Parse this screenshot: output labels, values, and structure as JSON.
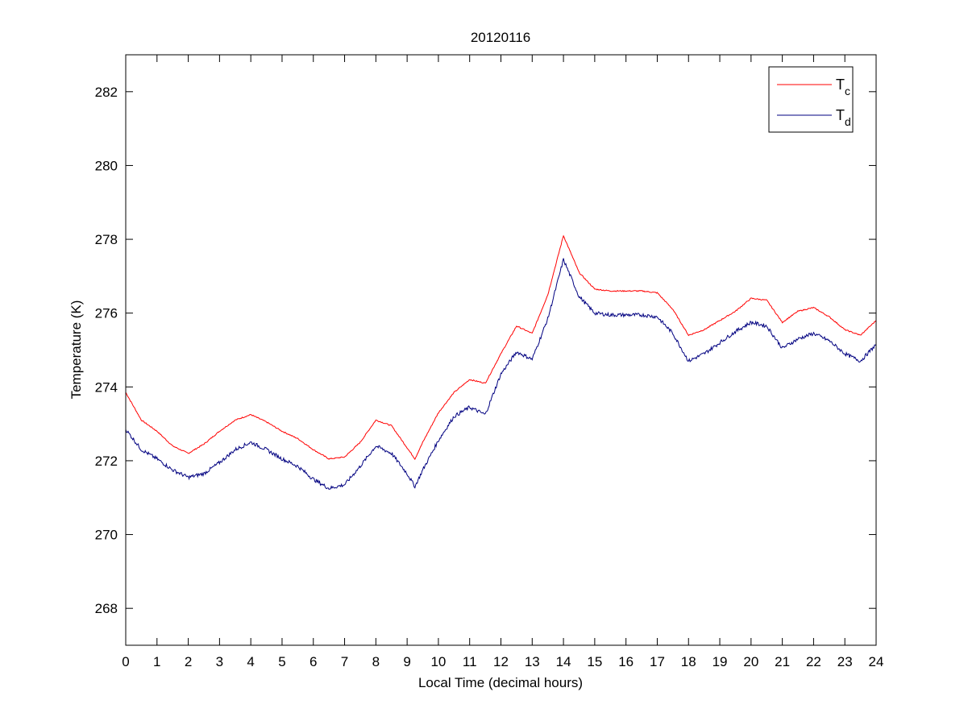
{
  "chart_data": {
    "type": "line",
    "title": "20120116",
    "xlabel": "Local Time (decimal hours)",
    "ylabel": "Temperature (K)",
    "xlim": [
      0,
      24
    ],
    "ylim": [
      267,
      283
    ],
    "xticks": [
      0,
      1,
      2,
      3,
      4,
      5,
      6,
      7,
      8,
      9,
      10,
      11,
      12,
      13,
      14,
      15,
      16,
      17,
      18,
      19,
      20,
      21,
      22,
      23,
      24
    ],
    "yticks": [
      268,
      270,
      272,
      274,
      276,
      278,
      280,
      282
    ],
    "grid": false,
    "legend_position": "top-right",
    "series": [
      {
        "name": "T",
        "subscript": "c",
        "color": "#ff0000",
        "x": [
          0,
          0.5,
          1,
          1.5,
          2,
          2.5,
          3,
          3.5,
          4,
          4.5,
          5,
          5.5,
          6,
          6.5,
          7,
          7.5,
          8,
          8.5,
          9,
          9.25,
          9.5,
          10,
          10.5,
          11,
          11.5,
          12,
          12.5,
          13,
          13.5,
          14,
          14.5,
          15,
          15.5,
          16,
          16.5,
          17,
          17.5,
          18,
          18.5,
          19,
          19.5,
          20,
          20.5,
          21,
          21.5,
          22,
          22.5,
          23,
          23.5,
          24
        ],
        "y": [
          273.85,
          273.1,
          272.8,
          272.4,
          272.2,
          272.45,
          272.8,
          273.1,
          273.25,
          273.05,
          272.8,
          272.6,
          272.3,
          272.05,
          272.1,
          272.5,
          273.1,
          272.95,
          272.35,
          272.05,
          272.5,
          273.3,
          273.85,
          274.2,
          274.1,
          274.9,
          275.65,
          275.45,
          276.5,
          278.1,
          277.1,
          276.65,
          276.6,
          276.6,
          276.6,
          276.55,
          276.1,
          275.4,
          275.55,
          275.8,
          276.05,
          276.4,
          276.35,
          275.75,
          276.05,
          276.15,
          275.9,
          275.55,
          275.4,
          275.8
        ]
      },
      {
        "name": "T",
        "subscript": "d",
        "color": "#000080",
        "x": [
          0,
          0.5,
          1,
          1.5,
          2,
          2.5,
          3,
          3.5,
          4,
          4.5,
          5,
          5.5,
          6,
          6.5,
          7,
          7.5,
          8,
          8.5,
          9,
          9.25,
          9.5,
          10,
          10.5,
          11,
          11.5,
          12,
          12.5,
          13,
          13.5,
          14,
          14.5,
          15,
          15.5,
          16,
          16.5,
          17,
          17.5,
          18,
          18.5,
          19,
          19.5,
          20,
          20.5,
          21,
          21.5,
          22,
          22.5,
          23,
          23.5,
          24
        ],
        "y": [
          272.85,
          272.3,
          272.05,
          271.75,
          271.55,
          271.65,
          271.95,
          272.3,
          272.5,
          272.3,
          272.05,
          271.85,
          271.5,
          271.25,
          271.35,
          271.85,
          272.4,
          272.2,
          271.65,
          271.3,
          271.75,
          272.55,
          273.2,
          273.45,
          273.25,
          274.35,
          274.95,
          274.75,
          275.85,
          277.45,
          276.45,
          276.0,
          275.95,
          275.95,
          275.95,
          275.9,
          275.45,
          274.7,
          274.9,
          275.2,
          275.5,
          275.75,
          275.65,
          275.05,
          275.3,
          275.45,
          275.25,
          274.9,
          274.7,
          275.15
        ]
      }
    ]
  }
}
